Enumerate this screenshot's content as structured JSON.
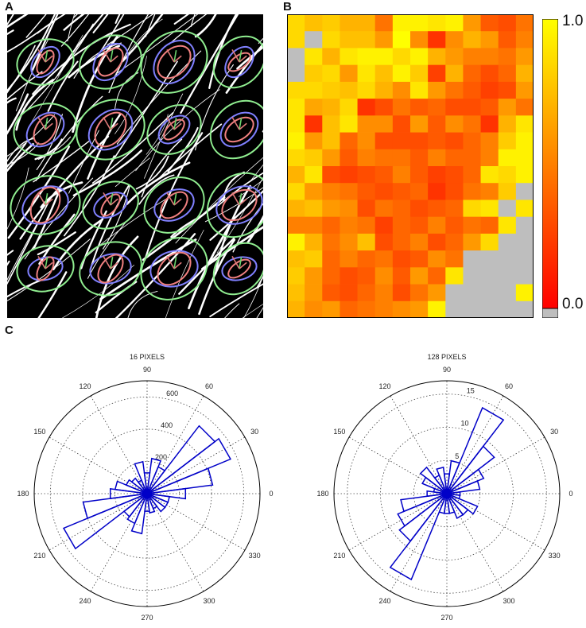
{
  "panels": {
    "a": "A",
    "b": "B",
    "c": "C"
  },
  "colorbar": {
    "max_label": "1.0",
    "min_label": "0.0",
    "gradient": [
      "#ff0000",
      "#ff8000",
      "#ffff00"
    ],
    "null_color": "#bebebe"
  },
  "heatmap": {
    "rows": 18,
    "cols": 14,
    "values": [
      [
        0.85,
        0.75,
        0.8,
        0.7,
        0.7,
        0.45,
        0.95,
        0.95,
        0.9,
        0.95,
        0.6,
        0.35,
        0.3,
        0.45
      ],
      [
        0.85,
        null,
        0.85,
        0.75,
        0.75,
        0.6,
        1.0,
        0.55,
        0.2,
        0.55,
        0.7,
        0.6,
        0.35,
        0.5
      ],
      [
        null,
        0.9,
        0.7,
        0.9,
        0.95,
        0.95,
        0.85,
        0.95,
        0.7,
        0.6,
        0.5,
        0.5,
        0.45,
        0.6
      ],
      [
        null,
        0.8,
        0.85,
        0.6,
        0.9,
        0.75,
        0.95,
        0.8,
        0.25,
        0.7,
        0.4,
        0.3,
        0.4,
        0.7
      ],
      [
        0.85,
        0.85,
        0.8,
        0.75,
        0.85,
        0.7,
        0.55,
        0.9,
        0.6,
        0.45,
        0.35,
        0.25,
        0.3,
        0.6
      ],
      [
        0.9,
        0.65,
        0.7,
        0.85,
        0.2,
        0.3,
        0.45,
        0.35,
        0.4,
        0.3,
        0.3,
        0.35,
        0.6,
        0.45
      ],
      [
        0.9,
        0.2,
        0.75,
        0.9,
        0.55,
        0.55,
        0.3,
        0.6,
        0.35,
        0.55,
        0.45,
        0.2,
        0.7,
        0.9
      ],
      [
        0.95,
        0.6,
        0.75,
        0.4,
        0.55,
        0.3,
        0.3,
        0.3,
        0.35,
        0.3,
        0.4,
        0.5,
        0.8,
        0.95
      ],
      [
        0.85,
        0.8,
        0.6,
        0.35,
        0.5,
        0.45,
        0.45,
        0.35,
        0.5,
        0.4,
        0.4,
        0.5,
        0.95,
        0.95
      ],
      [
        0.7,
        0.9,
        0.3,
        0.25,
        0.3,
        0.35,
        0.5,
        0.35,
        0.25,
        0.3,
        0.4,
        0.9,
        0.85,
        0.95
      ],
      [
        0.85,
        0.6,
        0.5,
        0.45,
        0.35,
        0.3,
        0.35,
        0.4,
        0.2,
        0.3,
        0.45,
        0.5,
        0.8,
        null
      ],
      [
        0.7,
        0.75,
        0.6,
        0.55,
        0.3,
        0.45,
        0.4,
        0.3,
        0.35,
        0.4,
        0.85,
        0.9,
        null,
        0.9
      ],
      [
        0.5,
        0.5,
        0.4,
        0.5,
        0.45,
        0.25,
        0.4,
        0.35,
        0.5,
        0.35,
        0.45,
        0.4,
        0.9,
        null
      ],
      [
        0.95,
        0.7,
        0.45,
        0.55,
        0.75,
        0.3,
        0.4,
        0.5,
        0.3,
        0.4,
        0.6,
        0.85,
        null,
        null
      ],
      [
        0.75,
        0.8,
        0.4,
        0.5,
        0.4,
        0.45,
        0.3,
        0.35,
        0.55,
        0.45,
        null,
        null,
        null,
        null
      ],
      [
        0.8,
        0.6,
        0.4,
        0.3,
        0.35,
        0.55,
        0.35,
        0.6,
        0.4,
        0.9,
        null,
        null,
        null,
        null
      ],
      [
        0.75,
        0.6,
        0.35,
        0.3,
        0.4,
        0.5,
        0.3,
        0.45,
        0.6,
        null,
        null,
        null,
        null,
        0.95
      ],
      [
        0.7,
        0.55,
        0.6,
        0.4,
        0.45,
        0.5,
        0.55,
        0.6,
        0.95,
        null,
        null,
        null,
        null,
        null
      ]
    ]
  },
  "chart_data": [
    {
      "type": "polar-histogram",
      "title": "16 PIXELS",
      "rmax": 700,
      "rticks": [
        200,
        400,
        600
      ],
      "angle_labels": [
        "0",
        "30",
        "60",
        "90",
        "120",
        "150",
        "180",
        "210",
        "240",
        "270",
        "300",
        "330"
      ],
      "bin_width_deg": 15,
      "bins": [
        {
          "theta": 0,
          "r": 240
        },
        {
          "theta": 15,
          "r": 410
        },
        {
          "theta": 30,
          "r": 560
        },
        {
          "theta": 45,
          "r": 530
        },
        {
          "theta": 60,
          "r": 180
        },
        {
          "theta": 75,
          "r": 220
        },
        {
          "theta": 90,
          "r": 130
        },
        {
          "theta": 105,
          "r": 200
        },
        {
          "theta": 120,
          "r": 90
        },
        {
          "theta": 135,
          "r": 120
        },
        {
          "theta": 150,
          "r": 140
        },
        {
          "theta": 165,
          "r": 200
        },
        {
          "theta": 180,
          "r": 230
        },
        {
          "theta": 195,
          "r": 400
        },
        {
          "theta": 210,
          "r": 560
        },
        {
          "theta": 225,
          "r": 180
        },
        {
          "theta": 240,
          "r": 200
        },
        {
          "theta": 255,
          "r": 250
        },
        {
          "theta": 270,
          "r": 110
        },
        {
          "theta": 285,
          "r": 120
        },
        {
          "theta": 300,
          "r": 100
        },
        {
          "theta": 315,
          "r": 140
        },
        {
          "theta": 330,
          "r": 140
        },
        {
          "theta": 345,
          "r": 140
        }
      ]
    },
    {
      "type": "polar-histogram",
      "title": "128 PIXELS",
      "rmax": 17,
      "rticks": [
        5,
        10,
        15
      ],
      "angle_labels": [
        "0",
        "30",
        "60",
        "90",
        "120",
        "150",
        "180",
        "210",
        "240",
        "270",
        "300",
        "330"
      ],
      "bin_width_deg": 15,
      "bins": [
        {
          "theta": 0,
          "r": 2
        },
        {
          "theta": 15,
          "r": 5
        },
        {
          "theta": 30,
          "r": 6
        },
        {
          "theta": 45,
          "r": 9
        },
        {
          "theta": 60,
          "r": 14
        },
        {
          "theta": 75,
          "r": 5
        },
        {
          "theta": 90,
          "r": 3
        },
        {
          "theta": 105,
          "r": 4
        },
        {
          "theta": 120,
          "r": 3
        },
        {
          "theta": 135,
          "r": 5
        },
        {
          "theta": 150,
          "r": 4
        },
        {
          "theta": 165,
          "r": 2
        },
        {
          "theta": 180,
          "r": 3
        },
        {
          "theta": 195,
          "r": 7
        },
        {
          "theta": 210,
          "r": 8
        },
        {
          "theta": 225,
          "r": 9
        },
        {
          "theta": 240,
          "r": 14
        },
        {
          "theta": 255,
          "r": 3
        },
        {
          "theta": 270,
          "r": 3
        },
        {
          "theta": 285,
          "r": 3
        },
        {
          "theta": 300,
          "r": 4
        },
        {
          "theta": 315,
          "r": 4
        },
        {
          "theta": 330,
          "r": 5
        },
        {
          "theta": 345,
          "r": 2
        }
      ]
    }
  ],
  "colors": {
    "bar": "#0000c8",
    "grid": "#444444",
    "ellipse_green": "#90ee90",
    "ellipse_blue": "#8080ff",
    "ellipse_red": "#f08080"
  }
}
